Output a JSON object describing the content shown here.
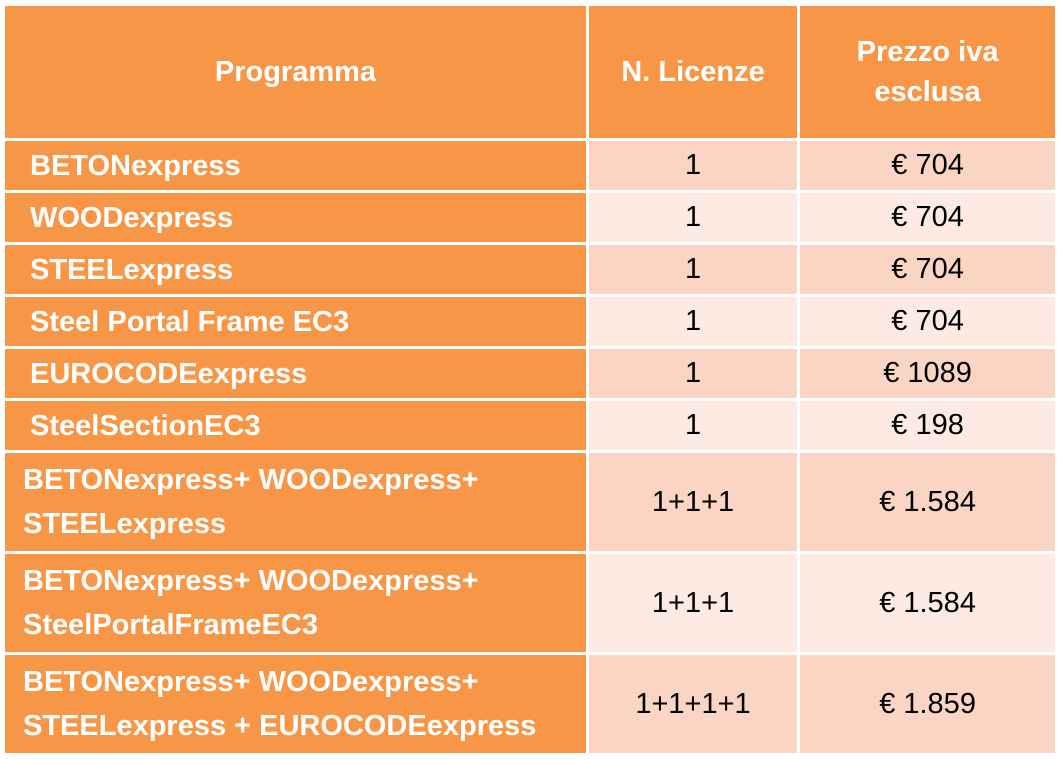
{
  "table": {
    "headers": {
      "program": "Programma",
      "licenses": "N. Licenze",
      "price_line1": "Prezzo iva",
      "price_line2": "esclusa"
    },
    "rows": [
      {
        "program": "BETONexpress",
        "licenses": "1",
        "price": "€ 704"
      },
      {
        "program": "WOODexpress",
        "licenses": "1",
        "price": "€ 704"
      },
      {
        "program": "STEELexpress",
        "licenses": "1",
        "price": "€ 704"
      },
      {
        "program": "Steel Portal Frame EC3",
        "licenses": "1",
        "price": "€ 704"
      },
      {
        "program": "EUROCODEexpress",
        "licenses": "1",
        "price": "€ 1089"
      },
      {
        "program": "SteelSectionEC3",
        "licenses": "1",
        "price": "€ 198"
      },
      {
        "program_line1": "BETONexpress+ WOODexpress+",
        "program_line2": "STEELexpress",
        "licenses": "1+1+1",
        "price": "€ 1.584"
      },
      {
        "program_line1": "BETONexpress+ WOODexpress+",
        "program_line2": "SteelPortalFrameEC3",
        "licenses": "1+1+1",
        "price": "€ 1.584"
      },
      {
        "program_line1": "BETONexpress+ WOODexpress+",
        "program_line2": "STEELexpress + EUROCODEexpress",
        "licenses": "1+1+1+1",
        "price": "€ 1.859"
      }
    ]
  },
  "colors": {
    "header_bg": "#f79646",
    "row_odd_bg": "#fbd5c3",
    "row_even_bg": "#fdebe3",
    "header_text": "#ffffff"
  }
}
